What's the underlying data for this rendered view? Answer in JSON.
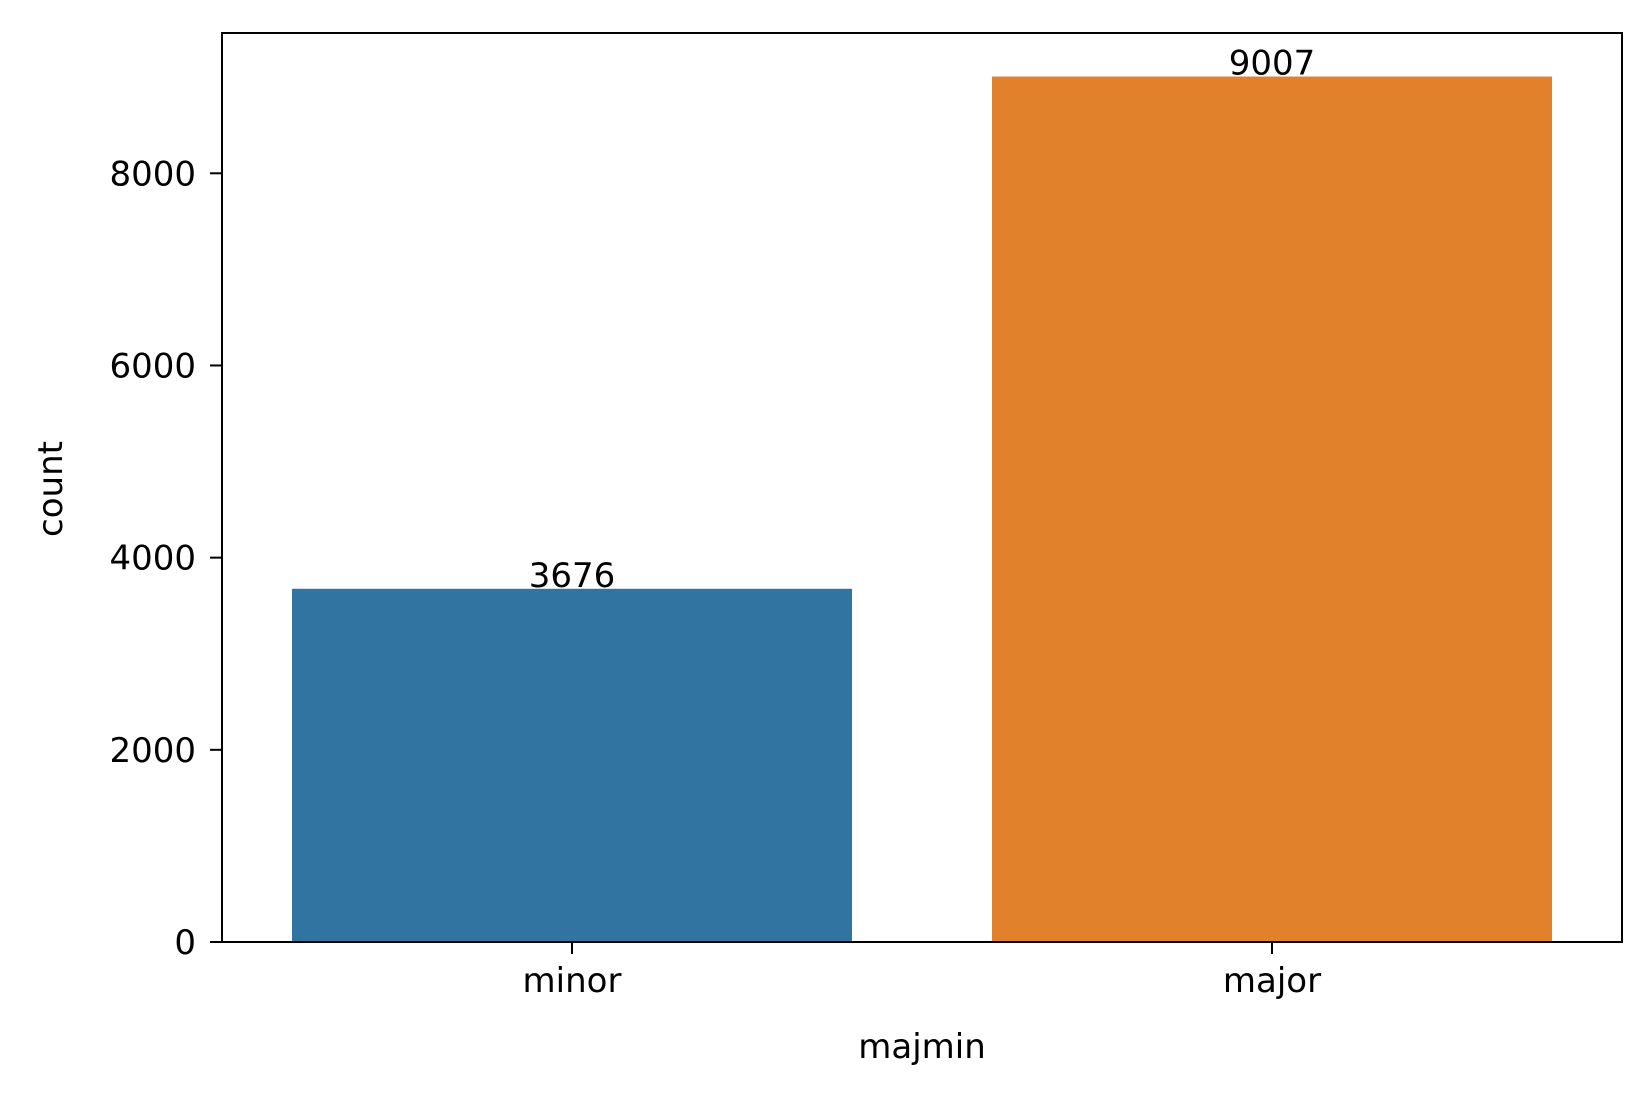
{
  "chart_data": {
    "type": "bar",
    "categories": [
      "minor",
      "major"
    ],
    "values": [
      3676,
      9007
    ],
    "data_labels": [
      "3676",
      "9007"
    ],
    "colors": [
      "#3274a1",
      "#e1812c"
    ],
    "title": "",
    "xlabel": "majmin",
    "ylabel": "count",
    "ylim": [
      0,
      9460
    ],
    "yticks": [
      0,
      2000,
      4000,
      6000,
      8000
    ],
    "ytick_labels": [
      "0",
      "2000",
      "4000",
      "6000",
      "8000"
    ],
    "grid": false,
    "legend": "none"
  }
}
